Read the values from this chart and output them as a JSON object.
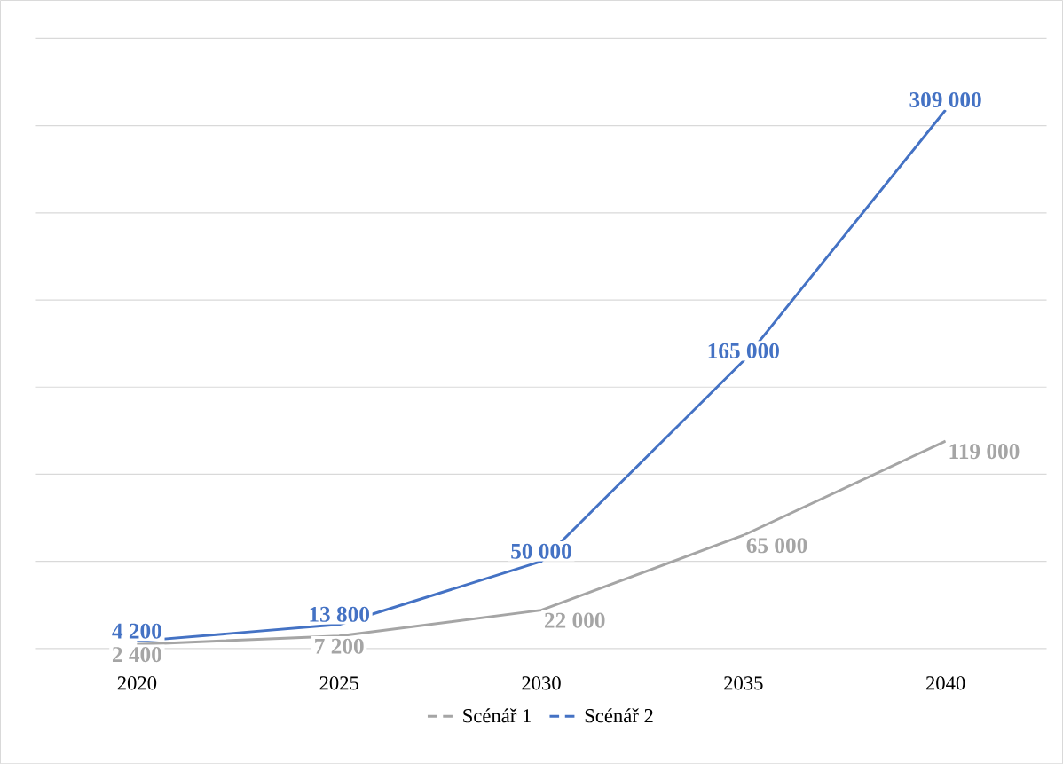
{
  "chart_data": {
    "type": "line",
    "categories": [
      "2020",
      "2025",
      "2030",
      "2035",
      "2040"
    ],
    "series": [
      {
        "name": "Scénář 1",
        "color": "#a5a5a5",
        "values": [
          2400,
          7200,
          22000,
          65000,
          119000
        ],
        "value_labels": [
          "2 400",
          "7 200",
          "22 000",
          "65 000",
          "119 000"
        ]
      },
      {
        "name": "Scénář 2",
        "color": "#4472c4",
        "values": [
          4200,
          13800,
          50000,
          165000,
          309000
        ],
        "value_labels": [
          "4 200",
          "13 800",
          "50 000",
          "165 000",
          "309 000"
        ]
      }
    ],
    "ylim": [
      0,
      350000
    ],
    "yticks": [
      {
        "value": 0,
        "label": null
      },
      {
        "value": 50000,
        "label": null
      },
      {
        "value": 100000,
        "label": null
      },
      {
        "value": 150000,
        "label": null
      },
      {
        "value": 200000,
        "label": null
      },
      {
        "value": 250000,
        "label": null
      },
      {
        "value": 300000,
        "label": null
      },
      {
        "value": 350000,
        "label": null
      }
    ],
    "tick_labels": "x",
    "grid": "y",
    "legend": "bottom",
    "marker": "none",
    "line_style": "solid"
  }
}
